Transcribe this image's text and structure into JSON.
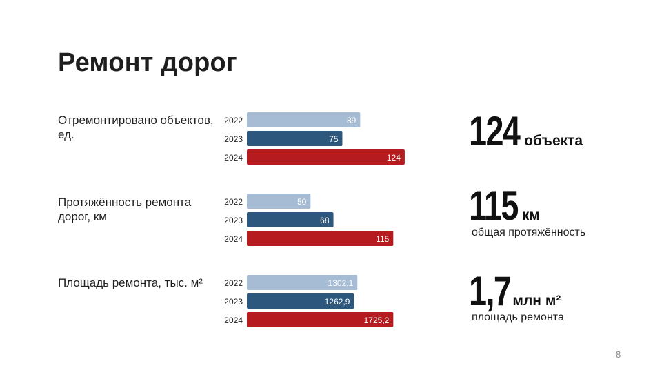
{
  "title": "Ремонт дорог",
  "page_number": "8",
  "colors": {
    "2022": "#a6bcd4",
    "2023": "#2d577d",
    "2024": "#b51b1f"
  },
  "highlights": [
    {
      "value": "124",
      "unit": "объекта",
      "caption": ""
    },
    {
      "value": "115",
      "unit": "км",
      "caption": "общая протяжённость"
    },
    {
      "value": "1,7",
      "unit": "млн м²",
      "caption": "площадь ремонта"
    }
  ],
  "chart_data": [
    {
      "type": "bar",
      "orientation": "horizontal",
      "title": "Отремонтировано объектов, ед.",
      "categories": [
        "2022",
        "2023",
        "2024"
      ],
      "values": [
        89,
        75,
        124
      ],
      "value_labels": [
        "89",
        "75",
        "124"
      ],
      "xlim": [
        0,
        130
      ]
    },
    {
      "type": "bar",
      "orientation": "horizontal",
      "title": "Протяжённость ремонта дорог, км",
      "categories": [
        "2022",
        "2023",
        "2024"
      ],
      "values": [
        50,
        68,
        115
      ],
      "value_labels": [
        "50",
        "68",
        "115"
      ],
      "xlim": [
        0,
        130
      ]
    },
    {
      "type": "bar",
      "orientation": "horizontal",
      "title": "Площадь ремонта, тыс. м²",
      "categories": [
        "2022",
        "2023",
        "2024"
      ],
      "values": [
        1302.1,
        1262.9,
        1725.2
      ],
      "value_labels": [
        "1302,1",
        "1262,9",
        "1725,2"
      ],
      "xlim": [
        0,
        1950
      ]
    }
  ]
}
